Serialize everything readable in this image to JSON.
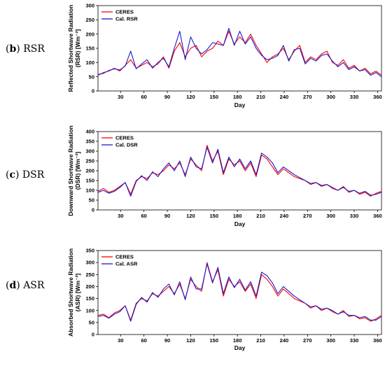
{
  "colors": {
    "ceres": "#ff0000",
    "calc": "#1a1acc",
    "axis": "#000000"
  },
  "chart_data": [
    {
      "type": "line",
      "panel_key": "b",
      "panel_name": "RSR",
      "xlabel": "Day",
      "ylabel": [
        "Reflected Shortwave Radiation",
        "(RSR) [Wm⁻²]"
      ],
      "xlim": [
        1,
        365
      ],
      "ylim": [
        0,
        300
      ],
      "xticks": [
        30,
        60,
        90,
        120,
        150,
        180,
        210,
        240,
        270,
        300,
        330,
        360
      ],
      "yticks": [
        0,
        50,
        100,
        150,
        200,
        250,
        300
      ],
      "legend_position": "top-left",
      "series": [
        {
          "name": "CERES",
          "color": "#ff0000",
          "x": [
            1,
            8,
            15,
            22,
            29,
            36,
            43,
            50,
            57,
            64,
            71,
            78,
            85,
            92,
            99,
            106,
            113,
            120,
            127,
            134,
            141,
            148,
            155,
            162,
            169,
            176,
            183,
            190,
            197,
            204,
            211,
            218,
            225,
            232,
            239,
            246,
            253,
            260,
            267,
            274,
            281,
            288,
            295,
            302,
            309,
            316,
            323,
            330,
            337,
            344,
            351,
            358,
            365
          ],
          "y": [
            55,
            65,
            70,
            80,
            70,
            90,
            110,
            80,
            90,
            100,
            85,
            95,
            120,
            80,
            140,
            170,
            120,
            150,
            160,
            120,
            140,
            150,
            175,
            160,
            210,
            165,
            190,
            170,
            200,
            160,
            130,
            100,
            120,
            130,
            150,
            110,
            140,
            160,
            100,
            120,
            110,
            130,
            140,
            100,
            90,
            110,
            80,
            90,
            70,
            80,
            60,
            70,
            55
          ]
        },
        {
          "name": "Cal. RSR",
          "color": "#1a1acc",
          "x": [
            1,
            8,
            15,
            22,
            29,
            36,
            43,
            50,
            57,
            64,
            71,
            78,
            85,
            92,
            99,
            106,
            113,
            120,
            127,
            134,
            141,
            148,
            155,
            162,
            169,
            176,
            183,
            190,
            197,
            204,
            211,
            218,
            225,
            232,
            239,
            246,
            253,
            260,
            267,
            274,
            281,
            288,
            295,
            302,
            309,
            316,
            323,
            330,
            337,
            344,
            351,
            358,
            365
          ],
          "y": [
            58,
            62,
            72,
            78,
            74,
            88,
            140,
            78,
            95,
            110,
            80,
            100,
            115,
            85,
            150,
            210,
            110,
            190,
            150,
            130,
            145,
            170,
            165,
            160,
            220,
            160,
            210,
            165,
            190,
            150,
            125,
            110,
            115,
            125,
            160,
            105,
            145,
            150,
            95,
            115,
            105,
            125,
            130,
            105,
            85,
            100,
            75,
            85,
            70,
            75,
            55,
            65,
            50
          ]
        }
      ]
    },
    {
      "type": "line",
      "panel_key": "c",
      "panel_name": "DSR",
      "xlabel": "Day",
      "ylabel": [
        "Downward Shortwave Radiation",
        "(DSR) [Wm⁻²]"
      ],
      "xlim": [
        1,
        365
      ],
      "ylim": [
        0,
        400
      ],
      "xticks": [
        30,
        60,
        90,
        120,
        150,
        180,
        210,
        240,
        270,
        300,
        330,
        360
      ],
      "yticks": [
        0,
        50,
        100,
        150,
        200,
        250,
        300,
        350,
        400
      ],
      "legend_position": "top-left",
      "series": [
        {
          "name": "CERES",
          "color": "#ff0000",
          "x": [
            1,
            8,
            15,
            22,
            29,
            36,
            43,
            50,
            57,
            64,
            71,
            78,
            85,
            92,
            99,
            106,
            113,
            120,
            127,
            134,
            141,
            148,
            155,
            162,
            169,
            176,
            183,
            190,
            197,
            204,
            211,
            218,
            225,
            232,
            239,
            246,
            253,
            260,
            267,
            274,
            281,
            288,
            295,
            302,
            309,
            316,
            323,
            330,
            337,
            344,
            351,
            358,
            365
          ],
          "y": [
            95,
            110,
            90,
            100,
            120,
            140,
            80,
            150,
            170,
            160,
            190,
            180,
            200,
            230,
            210,
            240,
            180,
            260,
            230,
            200,
            330,
            250,
            300,
            180,
            260,
            230,
            250,
            200,
            240,
            170,
            280,
            260,
            220,
            180,
            210,
            190,
            170,
            160,
            150,
            130,
            140,
            120,
            130,
            110,
            100,
            120,
            90,
            100,
            80,
            90,
            70,
            85,
            95
          ]
        },
        {
          "name": "Cal. DSR",
          "color": "#1a1acc",
          "x": [
            1,
            8,
            15,
            22,
            29,
            36,
            43,
            50,
            57,
            64,
            71,
            78,
            85,
            92,
            99,
            106,
            113,
            120,
            127,
            134,
            141,
            148,
            155,
            162,
            169,
            176,
            183,
            190,
            197,
            204,
            211,
            218,
            225,
            232,
            239,
            246,
            253,
            260,
            267,
            274,
            281,
            288,
            295,
            302,
            309,
            316,
            323,
            330,
            337,
            344,
            351,
            358,
            365
          ],
          "y": [
            90,
            100,
            85,
            95,
            115,
            140,
            70,
            145,
            175,
            150,
            195,
            170,
            210,
            240,
            200,
            250,
            170,
            270,
            220,
            210,
            320,
            240,
            310,
            190,
            270,
            220,
            260,
            210,
            250,
            180,
            290,
            270,
            240,
            190,
            220,
            200,
            180,
            165,
            150,
            135,
            140,
            125,
            130,
            115,
            100,
            115,
            95,
            100,
            85,
            95,
            75,
            80,
            90
          ]
        }
      ]
    },
    {
      "type": "line",
      "panel_key": "d",
      "panel_name": "ASR",
      "xlabel": "Day",
      "ylabel": [
        "Absorbed Shortwave Radiation",
        "(ASR) [Wm⁻²]"
      ],
      "xlim": [
        1,
        365
      ],
      "ylim": [
        0,
        350
      ],
      "xticks": [
        30,
        60,
        90,
        120,
        150,
        180,
        210,
        240,
        270,
        300,
        330,
        360
      ],
      "yticks": [
        0,
        50,
        100,
        150,
        200,
        250,
        300,
        350
      ],
      "legend_position": "top-left",
      "series": [
        {
          "name": "CERES",
          "color": "#ff0000",
          "x": [
            1,
            8,
            15,
            22,
            29,
            36,
            43,
            50,
            57,
            64,
            71,
            78,
            85,
            92,
            99,
            106,
            113,
            120,
            127,
            134,
            141,
            148,
            155,
            162,
            169,
            176,
            183,
            190,
            197,
            204,
            211,
            218,
            225,
            232,
            239,
            246,
            253,
            260,
            267,
            274,
            281,
            288,
            295,
            302,
            309,
            316,
            323,
            330,
            337,
            344,
            351,
            358,
            365
          ],
          "y": [
            80,
            85,
            70,
            90,
            100,
            120,
            60,
            130,
            150,
            140,
            170,
            160,
            180,
            200,
            170,
            210,
            150,
            230,
            200,
            180,
            300,
            220,
            270,
            160,
            230,
            200,
            220,
            180,
            210,
            150,
            250,
            230,
            200,
            160,
            190,
            170,
            150,
            140,
            130,
            110,
            120,
            100,
            110,
            95,
            85,
            100,
            75,
            80,
            65,
            70,
            55,
            65,
            80
          ]
        },
        {
          "name": "Cal. ASR",
          "color": "#1a1acc",
          "x": [
            1,
            8,
            15,
            22,
            29,
            36,
            43,
            50,
            57,
            64,
            71,
            78,
            85,
            92,
            99,
            106,
            113,
            120,
            127,
            134,
            141,
            148,
            155,
            162,
            169,
            176,
            183,
            190,
            197,
            204,
            211,
            218,
            225,
            232,
            239,
            246,
            253,
            260,
            267,
            274,
            281,
            288,
            295,
            302,
            309,
            316,
            323,
            330,
            337,
            344,
            351,
            358,
            365
          ],
          "y": [
            75,
            80,
            68,
            85,
            95,
            120,
            55,
            125,
            155,
            135,
            175,
            155,
            190,
            210,
            165,
            220,
            145,
            240,
            190,
            190,
            295,
            215,
            280,
            170,
            240,
            195,
            230,
            185,
            220,
            160,
            260,
            245,
            215,
            170,
            200,
            180,
            160,
            145,
            130,
            115,
            120,
            105,
            110,
            100,
            85,
            95,
            80,
            80,
            70,
            75,
            60,
            60,
            75
          ]
        }
      ]
    }
  ]
}
